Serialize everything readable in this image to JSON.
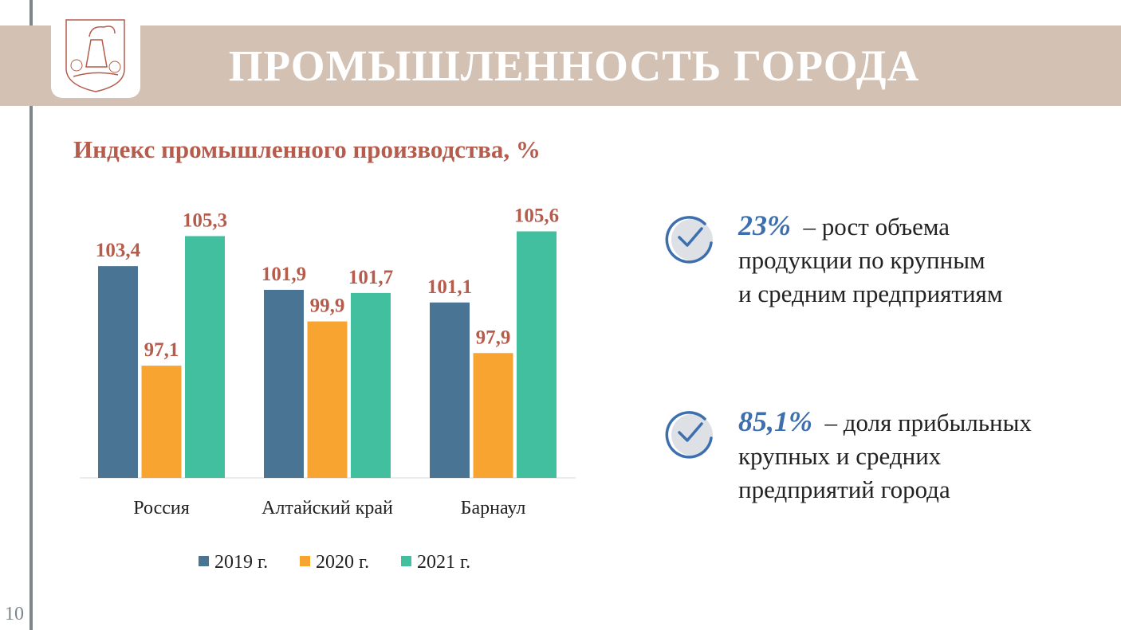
{
  "header": {
    "title": "ПРОМЫШЛЕННОСТЬ ГОРОДА"
  },
  "page_number": "10",
  "facts": [
    {
      "value": "23%",
      "text_lines": [
        "– рост объема",
        "продукции по крупным",
        "и средним предприятиям"
      ]
    },
    {
      "value": "85,1%",
      "text_lines": [
        "– доля прибыльных",
        "крупных и средних",
        "предприятий города"
      ]
    }
  ],
  "chart_data": {
    "type": "bar",
    "title": "Индекс промышленного производства, %",
    "categories": [
      "Россия",
      "Алтайский край",
      "Барнаул"
    ],
    "series": [
      {
        "name": "2019 г.",
        "color": "#4a7493",
        "values": [
          103.4,
          101.9,
          101.1
        ],
        "labels": [
          "103,4",
          "101,9",
          "101,1"
        ]
      },
      {
        "name": "2020 г.",
        "color": "#f7a431",
        "values": [
          97.1,
          99.9,
          97.9
        ],
        "labels": [
          "97,1",
          "99,9",
          "97,9"
        ]
      },
      {
        "name": "2021 г.",
        "color": "#42bf9e",
        "values": [
          105.3,
          101.7,
          105.6
        ],
        "labels": [
          "105,3",
          "101,7",
          "105,6"
        ]
      }
    ],
    "ylim": [
      90,
      107
    ],
    "legend": "bottom",
    "grid": false,
    "label_color": "#b55c4c"
  }
}
